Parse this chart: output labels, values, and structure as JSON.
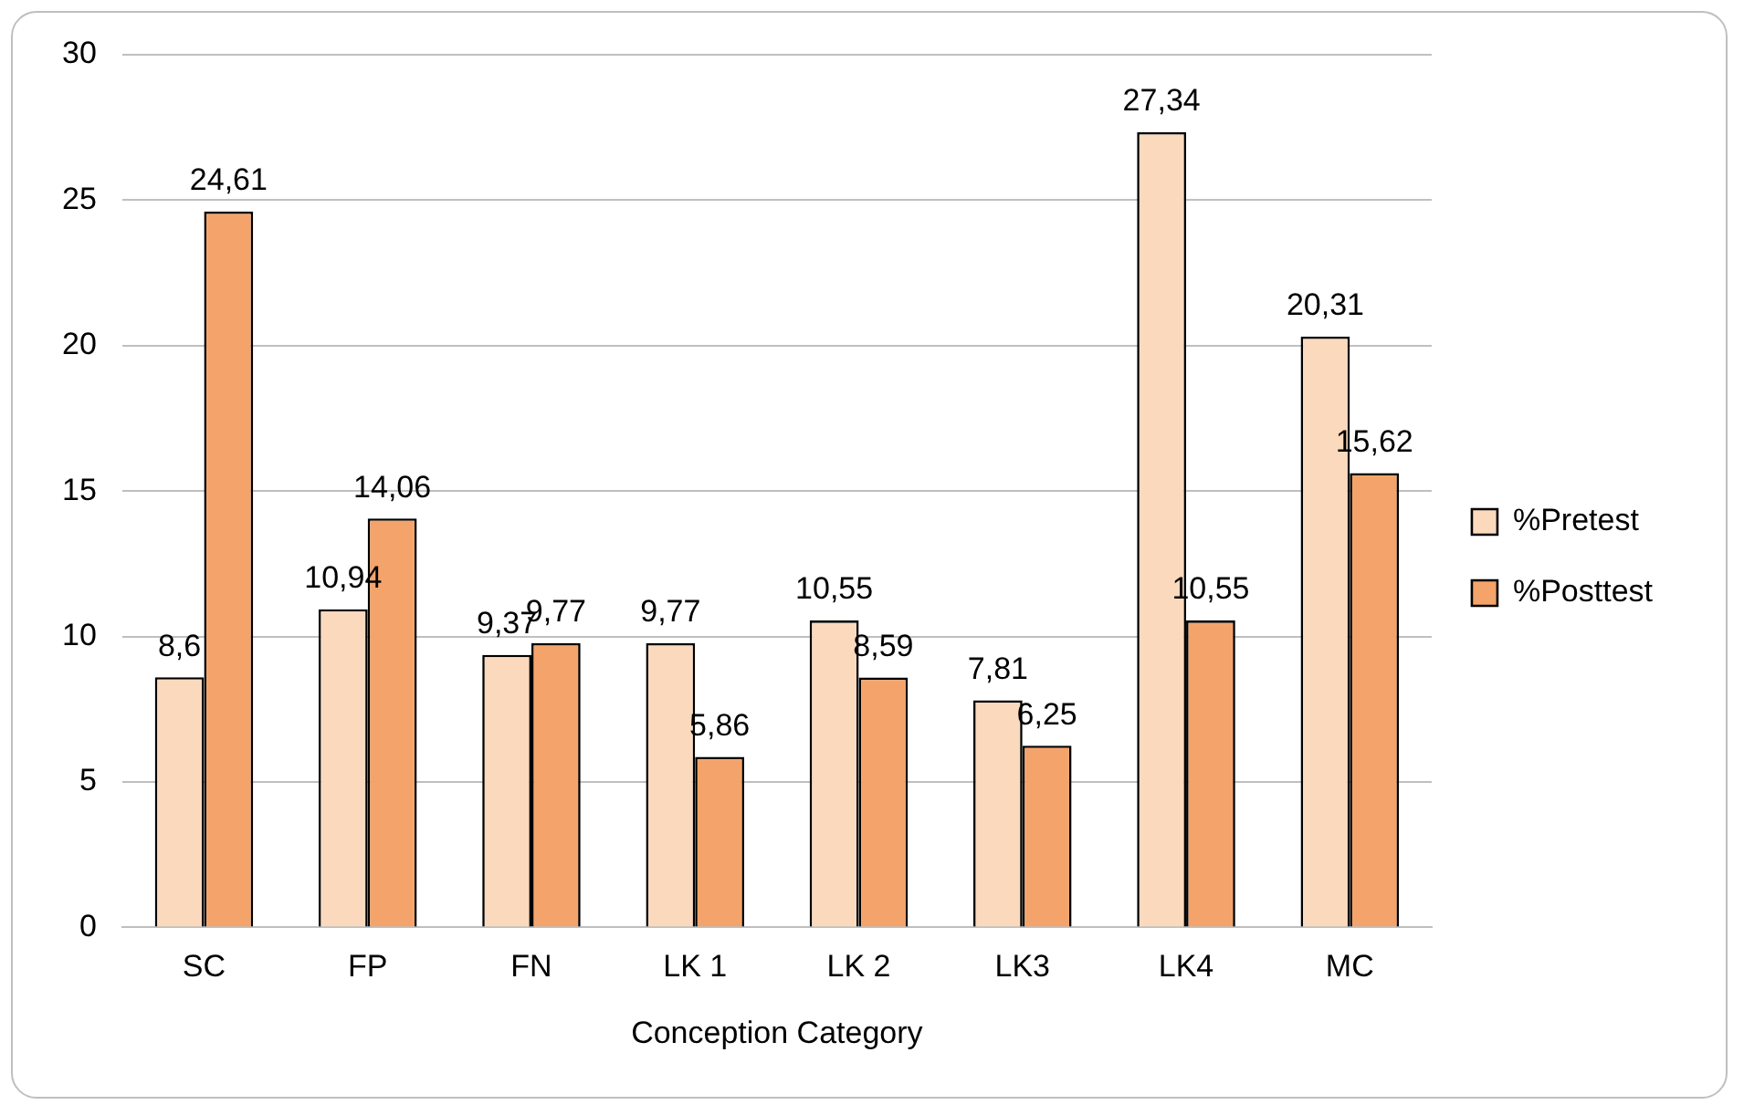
{
  "chart_data": {
    "type": "bar",
    "xlabel": "Conception Category",
    "categories": [
      "SC",
      "FP",
      "FN",
      "LK 1",
      "LK 2",
      "LK3",
      "LK4",
      "MC"
    ],
    "series": [
      {
        "name": "%Pretest",
        "color": "#fbd9bd",
        "values": [
          8.6,
          10.94,
          9.37,
          9.77,
          10.55,
          7.81,
          27.34,
          20.31
        ],
        "value_labels": [
          "8,6",
          "10,94",
          "9,37",
          "9,77",
          "10,55",
          "7,81",
          "27,34",
          "20,31"
        ]
      },
      {
        "name": "%Posttest",
        "color": "#f4a46a",
        "values": [
          24.61,
          14.06,
          9.77,
          5.86,
          8.59,
          6.25,
          10.55,
          15.62
        ],
        "value_labels": [
          "24,61",
          "14,06",
          "9,77",
          "5,86",
          "8,59",
          "6,25",
          "10,55",
          "15,62"
        ]
      }
    ],
    "ylim": [
      0,
      30
    ],
    "yticks": [
      0,
      5,
      10,
      15,
      20,
      25,
      30
    ],
    "grid": "y",
    "legend": "right"
  }
}
